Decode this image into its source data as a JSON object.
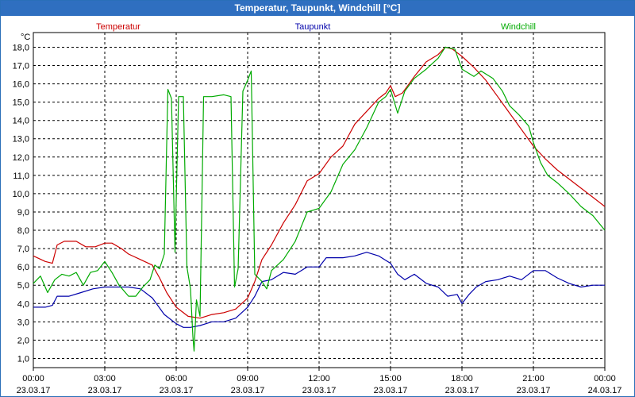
{
  "window": {
    "title": "Temperatur, Taupunkt, Windchill [°C]"
  },
  "chart_data": {
    "type": "line",
    "title": "Temperatur, Taupunkt, Windchill [°C]",
    "unit_label": "°C",
    "x_hours_range": [
      0,
      24
    ],
    "ylim": [
      0.5,
      18.8
    ],
    "grid": true,
    "y_ticks": [
      "1,0",
      "2,0",
      "3,0",
      "4,0",
      "5,0",
      "6,0",
      "7,0",
      "8,0",
      "9,0",
      "10,0",
      "11,0",
      "12,0",
      "13,0",
      "14,0",
      "15,0",
      "16,0",
      "17,0",
      "18,0"
    ],
    "x_ticks": [
      {
        "time": "00:00",
        "date": "23.03.17"
      },
      {
        "time": "03:00",
        "date": "23.03.17"
      },
      {
        "time": "06:00",
        "date": "23.03.17"
      },
      {
        "time": "09:00",
        "date": "23.03.17"
      },
      {
        "time": "12:00",
        "date": "23.03.17"
      },
      {
        "time": "15:00",
        "date": "23.03.17"
      },
      {
        "time": "18:00",
        "date": "23.03.17"
      },
      {
        "time": "21:00",
        "date": "23.03.17"
      },
      {
        "time": "00:00",
        "date": "24.03.17"
      }
    ],
    "series": [
      {
        "name": "Temperatur",
        "color": "#cc0000",
        "legend": "left",
        "points": [
          [
            0,
            6.6
          ],
          [
            0.5,
            6.3
          ],
          [
            0.8,
            6.2
          ],
          [
            1.0,
            7.2
          ],
          [
            1.3,
            7.4
          ],
          [
            1.8,
            7.4
          ],
          [
            2.2,
            7.1
          ],
          [
            2.6,
            7.1
          ],
          [
            3.0,
            7.3
          ],
          [
            3.3,
            7.3
          ],
          [
            3.7,
            7.0
          ],
          [
            4.0,
            6.7
          ],
          [
            4.5,
            6.4
          ],
          [
            5.0,
            6.1
          ],
          [
            5.3,
            5.4
          ],
          [
            5.6,
            4.6
          ],
          [
            6.0,
            3.8
          ],
          [
            6.5,
            3.3
          ],
          [
            7.0,
            3.2
          ],
          [
            7.5,
            3.4
          ],
          [
            8.0,
            3.5
          ],
          [
            8.5,
            3.7
          ],
          [
            9.0,
            4.3
          ],
          [
            9.3,
            5.2
          ],
          [
            9.6,
            6.4
          ],
          [
            10.0,
            7.2
          ],
          [
            10.5,
            8.4
          ],
          [
            11.0,
            9.4
          ],
          [
            11.5,
            10.7
          ],
          [
            12.0,
            11.1
          ],
          [
            12.5,
            12.0
          ],
          [
            13.0,
            12.6
          ],
          [
            13.5,
            13.8
          ],
          [
            14.0,
            14.5
          ],
          [
            14.5,
            15.2
          ],
          [
            14.8,
            15.5
          ],
          [
            15.0,
            15.9
          ],
          [
            15.2,
            15.3
          ],
          [
            15.5,
            15.5
          ],
          [
            16.0,
            16.4
          ],
          [
            16.5,
            17.2
          ],
          [
            17.0,
            17.6
          ],
          [
            17.3,
            18.0
          ],
          [
            17.6,
            17.9
          ],
          [
            18.0,
            17.5
          ],
          [
            18.5,
            16.9
          ],
          [
            19.0,
            16.2
          ],
          [
            19.5,
            15.3
          ],
          [
            20.0,
            14.4
          ],
          [
            20.5,
            13.5
          ],
          [
            21.0,
            12.6
          ],
          [
            21.5,
            11.9
          ],
          [
            22.0,
            11.3
          ],
          [
            22.5,
            10.8
          ],
          [
            23.0,
            10.3
          ],
          [
            23.5,
            9.8
          ],
          [
            24.0,
            9.3
          ]
        ]
      },
      {
        "name": "Taupunkt",
        "color": "#0000aa",
        "legend": "center",
        "points": [
          [
            0,
            3.8
          ],
          [
            0.5,
            3.8
          ],
          [
            0.8,
            3.9
          ],
          [
            1.0,
            4.4
          ],
          [
            1.5,
            4.4
          ],
          [
            2.0,
            4.6
          ],
          [
            2.5,
            4.8
          ],
          [
            3.0,
            4.9
          ],
          [
            3.5,
            4.9
          ],
          [
            4.0,
            4.9
          ],
          [
            4.5,
            4.8
          ],
          [
            5.0,
            4.3
          ],
          [
            5.5,
            3.4
          ],
          [
            6.0,
            2.9
          ],
          [
            6.3,
            2.7
          ],
          [
            6.6,
            2.7
          ],
          [
            7.0,
            2.8
          ],
          [
            7.5,
            3.0
          ],
          [
            8.0,
            3.0
          ],
          [
            8.5,
            3.2
          ],
          [
            9.0,
            3.8
          ],
          [
            9.3,
            4.4
          ],
          [
            9.6,
            5.2
          ],
          [
            10.0,
            5.3
          ],
          [
            10.5,
            5.7
          ],
          [
            11.0,
            5.6
          ],
          [
            11.5,
            6.0
          ],
          [
            12.0,
            6.0
          ],
          [
            12.3,
            6.5
          ],
          [
            12.7,
            6.5
          ],
          [
            13.0,
            6.5
          ],
          [
            13.5,
            6.6
          ],
          [
            14.0,
            6.8
          ],
          [
            14.5,
            6.6
          ],
          [
            15.0,
            6.2
          ],
          [
            15.3,
            5.6
          ],
          [
            15.6,
            5.3
          ],
          [
            16.0,
            5.6
          ],
          [
            16.5,
            5.1
          ],
          [
            17.0,
            4.9
          ],
          [
            17.4,
            4.4
          ],
          [
            17.8,
            4.5
          ],
          [
            18.0,
            4.0
          ],
          [
            18.3,
            4.5
          ],
          [
            18.6,
            4.9
          ],
          [
            19.0,
            5.2
          ],
          [
            19.5,
            5.3
          ],
          [
            20.0,
            5.5
          ],
          [
            20.5,
            5.3
          ],
          [
            21.0,
            5.8
          ],
          [
            21.5,
            5.8
          ],
          [
            22.0,
            5.4
          ],
          [
            22.5,
            5.1
          ],
          [
            23.0,
            4.9
          ],
          [
            23.5,
            5.0
          ],
          [
            24.0,
            5.0
          ]
        ]
      },
      {
        "name": "Windchill",
        "color": "#00aa00",
        "legend": "right",
        "points": [
          [
            0,
            5.1
          ],
          [
            0.3,
            5.5
          ],
          [
            0.6,
            4.6
          ],
          [
            0.9,
            5.3
          ],
          [
            1.2,
            5.6
          ],
          [
            1.5,
            5.5
          ],
          [
            1.8,
            5.7
          ],
          [
            2.1,
            5.0
          ],
          [
            2.4,
            5.7
          ],
          [
            2.7,
            5.8
          ],
          [
            3.0,
            6.3
          ],
          [
            3.3,
            5.7
          ],
          [
            3.6,
            5.0
          ],
          [
            4.0,
            4.4
          ],
          [
            4.3,
            4.4
          ],
          [
            4.6,
            4.9
          ],
          [
            4.9,
            5.3
          ],
          [
            5.1,
            6.1
          ],
          [
            5.3,
            5.9
          ],
          [
            5.5,
            6.7
          ],
          [
            5.65,
            15.7
          ],
          [
            5.8,
            15.2
          ],
          [
            5.95,
            6.8
          ],
          [
            6.1,
            15.3
          ],
          [
            6.3,
            15.3
          ],
          [
            6.45,
            6.0
          ],
          [
            6.6,
            4.8
          ],
          [
            6.7,
            2.2
          ],
          [
            6.75,
            1.4
          ],
          [
            6.85,
            4.2
          ],
          [
            7.0,
            3.3
          ],
          [
            7.15,
            15.3
          ],
          [
            7.5,
            15.3
          ],
          [
            8.0,
            15.4
          ],
          [
            8.3,
            15.3
          ],
          [
            8.45,
            4.9
          ],
          [
            8.6,
            5.9
          ],
          [
            8.8,
            15.6
          ],
          [
            9.0,
            16.2
          ],
          [
            9.15,
            16.7
          ],
          [
            9.3,
            5.6
          ],
          [
            9.6,
            5.2
          ],
          [
            9.8,
            4.8
          ],
          [
            10.0,
            5.8
          ],
          [
            10.5,
            6.4
          ],
          [
            11.0,
            7.4
          ],
          [
            11.5,
            9.0
          ],
          [
            12.0,
            9.2
          ],
          [
            12.5,
            10.1
          ],
          [
            13.0,
            11.6
          ],
          [
            13.5,
            12.4
          ],
          [
            14.0,
            13.6
          ],
          [
            14.5,
            15.0
          ],
          [
            14.8,
            15.3
          ],
          [
            15.0,
            15.7
          ],
          [
            15.3,
            14.4
          ],
          [
            15.6,
            15.6
          ],
          [
            16.0,
            16.3
          ],
          [
            16.5,
            16.8
          ],
          [
            17.0,
            17.4
          ],
          [
            17.3,
            18.0
          ],
          [
            17.7,
            17.9
          ],
          [
            18.0,
            16.8
          ],
          [
            18.5,
            16.4
          ],
          [
            18.8,
            16.7
          ],
          [
            19.3,
            16.3
          ],
          [
            19.7,
            15.6
          ],
          [
            20.0,
            14.8
          ],
          [
            20.4,
            14.3
          ],
          [
            20.8,
            13.7
          ],
          [
            21.0,
            12.8
          ],
          [
            21.3,
            11.7
          ],
          [
            21.6,
            11.0
          ],
          [
            22.0,
            10.6
          ],
          [
            22.5,
            10.0
          ],
          [
            23.0,
            9.3
          ],
          [
            23.5,
            8.8
          ],
          [
            24.0,
            8.0
          ]
        ]
      }
    ]
  }
}
